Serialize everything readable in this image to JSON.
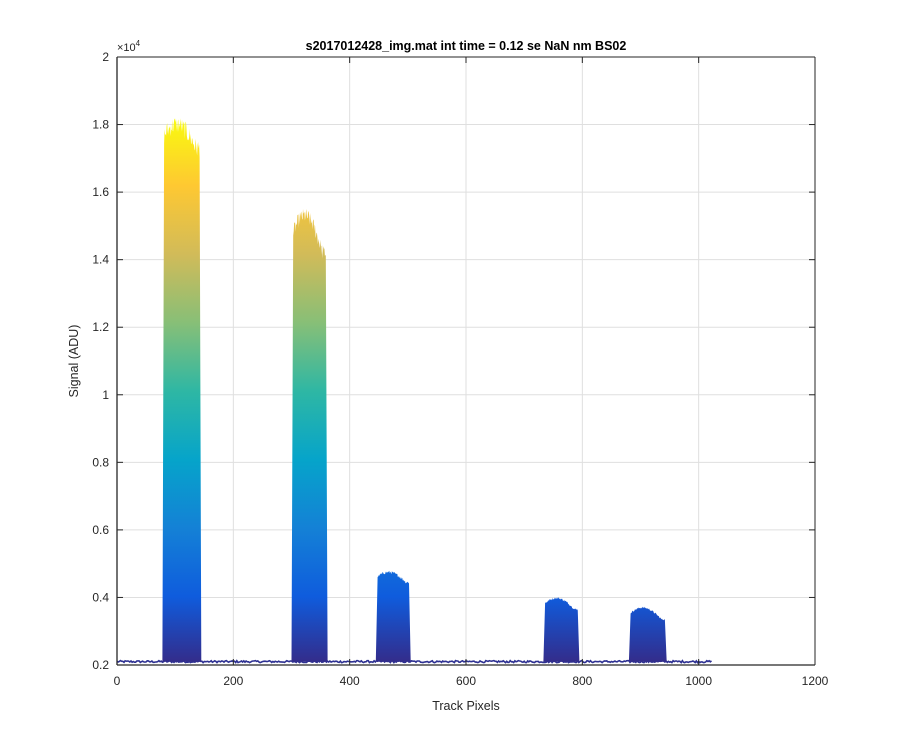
{
  "chart_data": {
    "type": "area",
    "title": "s2017012428_img.mat int time = 0.12 se  NaN nm BS02",
    "xlabel": "Track Pixels",
    "ylabel": "Signal (ADU)",
    "xlim": [
      0,
      1200
    ],
    "ylim": [
      2000,
      20000
    ],
    "y_exponent_label": "×10",
    "y_exponent_power": "4",
    "x_ticks": [
      0,
      200,
      400,
      600,
      800,
      1000,
      1200
    ],
    "x_tick_labels": [
      "0",
      "200",
      "400",
      "600",
      "800",
      "1000",
      "1200"
    ],
    "y_ticks": [
      2000,
      4000,
      6000,
      8000,
      10000,
      12000,
      14000,
      16000,
      18000,
      20000
    ],
    "y_tick_labels": [
      "0.2",
      "0.4",
      "0.6",
      "0.8",
      "1",
      "1.2",
      "1.4",
      "1.6",
      "1.8",
      "2"
    ],
    "grid": true,
    "baseline": 2100,
    "baseline_range": [
      0,
      1022
    ],
    "peaks": [
      {
        "x_start": 78,
        "x_end": 145,
        "peak": 18000,
        "shoulder": 17300
      },
      {
        "x_start": 300,
        "x_end": 362,
        "peak": 15300,
        "shoulder": 14200
      },
      {
        "x_start": 445,
        "x_end": 505,
        "peak": 4750,
        "shoulder": 4450
      },
      {
        "x_start": 733,
        "x_end": 795,
        "peak": 3980,
        "shoulder": 3650
      },
      {
        "x_start": 880,
        "x_end": 945,
        "peak": 3700,
        "shoulder": 3350
      }
    ],
    "colormap": [
      "#352a87",
      "#0f5cdd",
      "#1481d6",
      "#06a4ca",
      "#2eb7a4",
      "#87bf77",
      "#d1bb59",
      "#fec832",
      "#f9fb0e"
    ]
  }
}
